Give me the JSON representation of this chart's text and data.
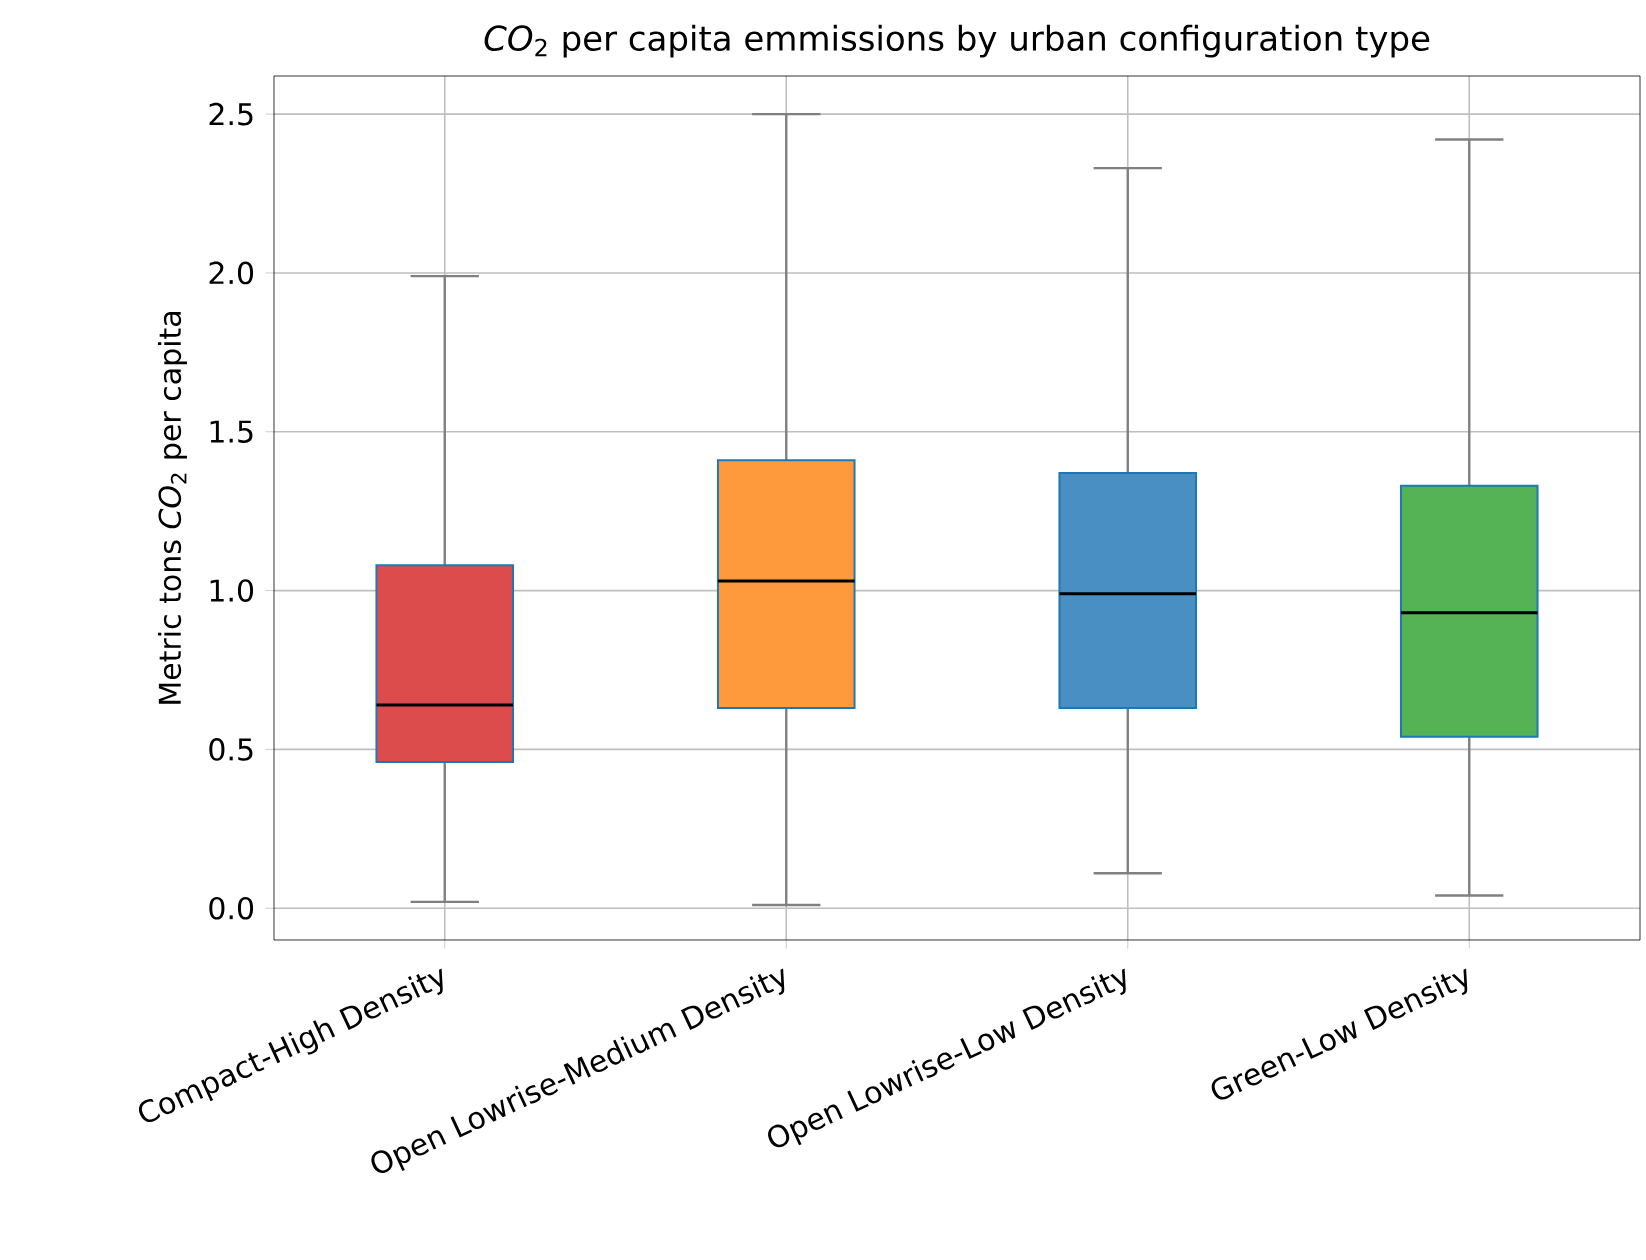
{
  "chart_data": {
    "type": "box",
    "title": "*CO*$_{2}$ per capita emmissions by urban configuration type",
    "ylabel": "Metric tons *CO*$_{2}$ per capita",
    "categories": [
      "Compact-High Density",
      "Open Lowrise-Medium Density",
      "Open Lowrise-Low Density",
      "Green-Low Density"
    ],
    "boxes": [
      {
        "low": 0.02,
        "q1": 0.46,
        "median": 0.64,
        "q3": 1.08,
        "high": 1.99
      },
      {
        "low": 0.01,
        "q1": 0.63,
        "median": 1.03,
        "q3": 1.41,
        "high": 2.5
      },
      {
        "low": 0.11,
        "q1": 0.63,
        "median": 0.99,
        "q3": 1.37,
        "high": 2.33
      },
      {
        "low": 0.04,
        "q1": 0.54,
        "median": 0.93,
        "q3": 1.33,
        "high": 2.42
      }
    ],
    "colors": [
      "#dc4c4d",
      "#ff9a3c",
      "#4a8fc4",
      "#55b255"
    ],
    "ylim": [
      -0.1,
      2.62
    ],
    "yticks": [
      {
        "value": 0,
        "label": "0.0"
      },
      {
        "value": 0.5,
        "label": "0.5"
      },
      {
        "value": 1,
        "label": "1.0"
      },
      {
        "value": 1.5,
        "label": "1.5"
      },
      {
        "value": 2,
        "label": "2.0"
      },
      {
        "value": 2.5,
        "label": "2.5"
      }
    ],
    "grid": true
  }
}
